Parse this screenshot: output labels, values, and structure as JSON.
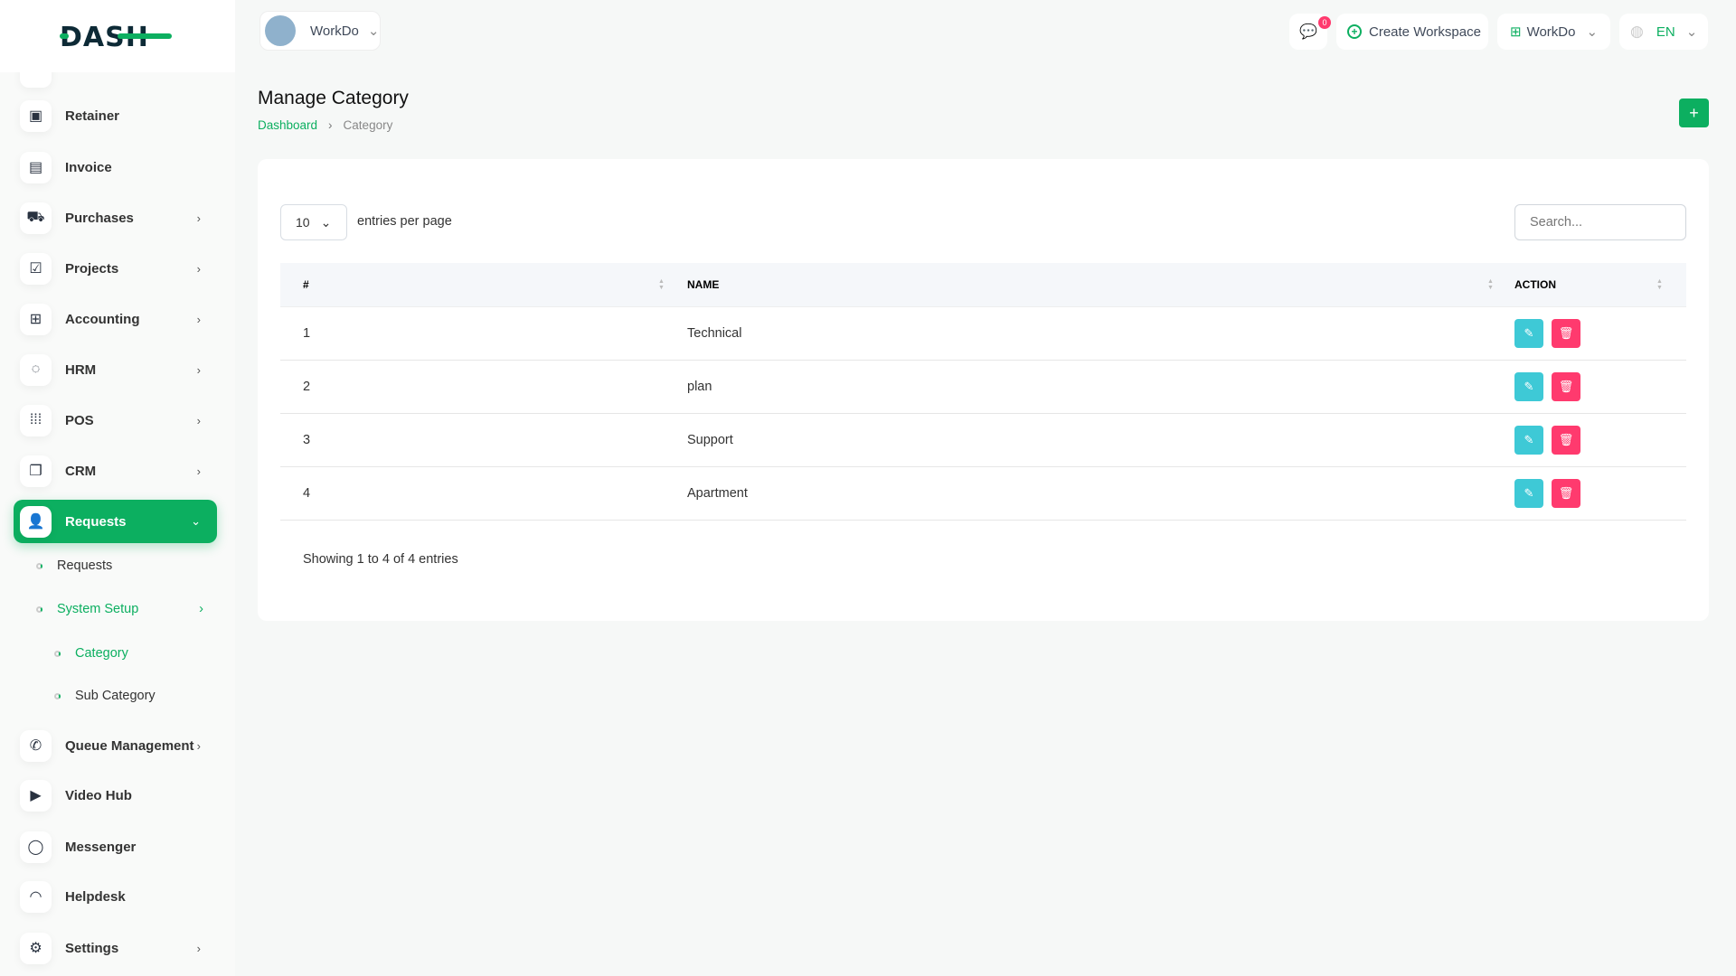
{
  "brand": {
    "logo_text": "DASH",
    "accent": "#0caf60"
  },
  "header": {
    "workspace": "WorkDo",
    "notifications": "0",
    "create_workspace": "Create Workspace",
    "workdo": "WorkDo",
    "lang": "EN"
  },
  "sidebar": {
    "items": [
      {
        "label": "Retainer",
        "icon": "save-icon"
      },
      {
        "label": "Invoice",
        "icon": "file-icon"
      },
      {
        "label": "Purchases",
        "icon": "cart-icon"
      },
      {
        "label": "Projects",
        "icon": "checkbox-icon"
      },
      {
        "label": "Accounting",
        "icon": "grid-plus-icon"
      },
      {
        "label": "HRM",
        "icon": "target-icon"
      },
      {
        "label": "POS",
        "icon": "dots-grid-icon"
      },
      {
        "label": "CRM",
        "icon": "layers-icon"
      },
      {
        "label": "Requests",
        "icon": "user-plus-icon"
      },
      {
        "label": "Queue Management",
        "icon": "phone-icon"
      },
      {
        "label": "Video Hub",
        "icon": "video-icon"
      },
      {
        "label": "Messenger",
        "icon": "message-icon"
      },
      {
        "label": "Helpdesk",
        "icon": "headset-icon"
      },
      {
        "label": "Settings",
        "icon": "gear-icon"
      }
    ],
    "sub": {
      "requests": "Requests",
      "system_setup": "System Setup",
      "category": "Category",
      "sub_category": "Sub Category"
    }
  },
  "page": {
    "title": "Manage Category",
    "breadcrumb": [
      "Dashboard",
      "Category"
    ]
  },
  "table": {
    "per_page": "10",
    "per_page_label": "entries per page",
    "search_placeholder": "Search...",
    "headers": [
      "#",
      "NAME",
      "ACTION"
    ],
    "rows": [
      {
        "n": "1",
        "name": "Technical"
      },
      {
        "n": "2",
        "name": "plan"
      },
      {
        "n": "3",
        "name": "Support"
      },
      {
        "n": "4",
        "name": "Apartment"
      }
    ],
    "footer": "Showing 1 to 4 of 4 entries"
  }
}
